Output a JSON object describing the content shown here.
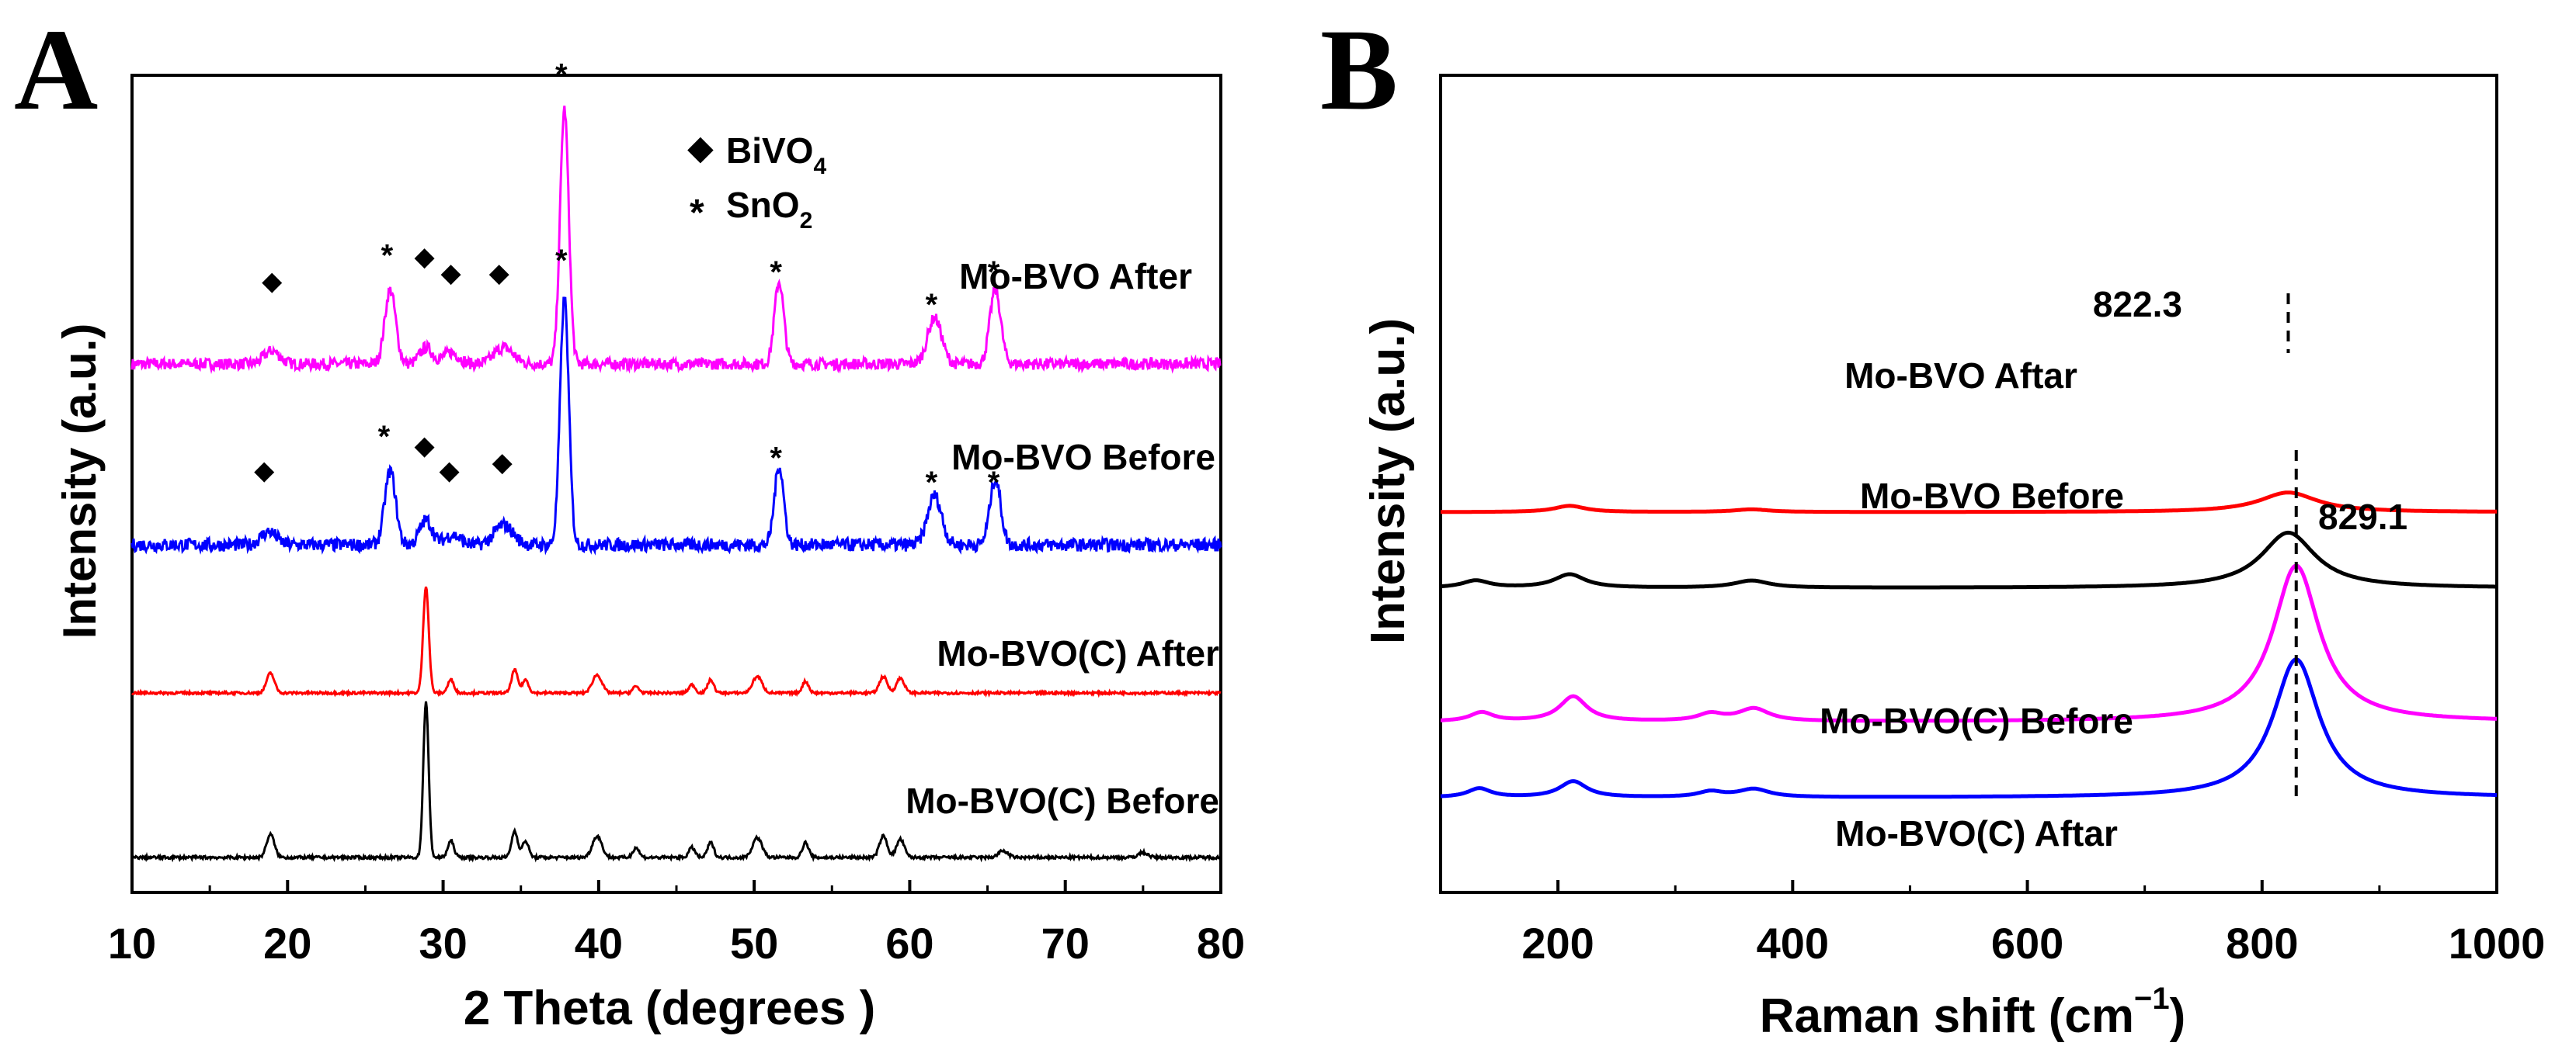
{
  "chart_data": [
    {
      "panel": "A",
      "type": "line",
      "xlabel": "2 Theta (degrees )",
      "ylabel": "Intensity (a.u.)",
      "xlim": [
        10,
        80
      ],
      "xticks": [
        "10",
        "20",
        "30",
        "40",
        "50",
        "60",
        "70",
        "80"
      ],
      "legend": [
        {
          "symbol": "◆",
          "label": "BiVO",
          "sub": "4"
        },
        {
          "symbol": "*",
          "label": "SnO",
          "sub": "2"
        }
      ],
      "series": [
        {
          "name": "Mo-BVO After",
          "color": "#ff00ff",
          "offset": 3.0,
          "noise": 0.07,
          "peaks": [
            [
              26.6,
              0.45,
              0.35
            ],
            [
              37.8,
              1.55,
              0.28
            ],
            [
              51.6,
              0.5,
              0.3
            ],
            [
              61.6,
              0.28,
              0.45
            ],
            [
              65.5,
              0.45,
              0.35
            ],
            [
              19.0,
              0.08,
              0.5
            ],
            [
              28.9,
              0.1,
              0.4
            ],
            [
              30.5,
              0.07,
              0.5
            ],
            [
              33.9,
              0.1,
              0.6
            ]
          ],
          "markers": [
            {
              "symbol": "◆",
              "x": 19.0,
              "y": 3.45
            },
            {
              "symbol": "*",
              "x": 26.4,
              "y": 3.7
            },
            {
              "symbol": "◆",
              "x": 28.8,
              "y": 3.6
            },
            {
              "symbol": "◆",
              "x": 30.5,
              "y": 3.5
            },
            {
              "symbol": "◆",
              "x": 33.6,
              "y": 3.5
            },
            {
              "symbol": "*",
              "x": 37.6,
              "y": 4.8
            },
            {
              "symbol": "*",
              "x": 51.4,
              "y": 3.6
            },
            {
              "symbol": "*",
              "x": 61.4,
              "y": 3.4
            },
            {
              "symbol": "*",
              "x": 65.4,
              "y": 3.6
            }
          ]
        },
        {
          "name": "Mo-BVO Before",
          "color": "#0000ff",
          "offset": 1.9,
          "noise": 0.08,
          "peaks": [
            [
              26.6,
              0.45,
              0.35
            ],
            [
              37.8,
              1.5,
              0.28
            ],
            [
              51.6,
              0.48,
              0.3
            ],
            [
              61.6,
              0.3,
              0.45
            ],
            [
              65.5,
              0.4,
              0.35
            ],
            [
              18.8,
              0.08,
              0.5
            ],
            [
              28.9,
              0.15,
              0.4
            ],
            [
              30.6,
              0.06,
              0.5
            ],
            [
              33.9,
              0.12,
              0.6
            ]
          ],
          "markers": [
            {
              "symbol": "◆",
              "x": 18.5,
              "y": 2.3
            },
            {
              "symbol": "*",
              "x": 26.2,
              "y": 2.6
            },
            {
              "symbol": "◆",
              "x": 28.8,
              "y": 2.45
            },
            {
              "symbol": "◆",
              "x": 30.4,
              "y": 2.3
            },
            {
              "symbol": "◆",
              "x": 33.8,
              "y": 2.35
            },
            {
              "symbol": "*",
              "x": 37.6,
              "y": 3.67
            },
            {
              "symbol": "*",
              "x": 51.4,
              "y": 2.47
            },
            {
              "symbol": "*",
              "x": 61.4,
              "y": 2.32
            },
            {
              "symbol": "*",
              "x": 65.4,
              "y": 2.32
            }
          ]
        },
        {
          "name": "Mo-BVO(C) After",
          "color": "#ff0000",
          "offset": 1.0,
          "noise": 0.015,
          "peaks": [
            [
              18.9,
              0.12,
              0.25
            ],
            [
              28.9,
              0.65,
              0.18
            ],
            [
              30.5,
              0.08,
              0.2
            ],
            [
              34.6,
              0.14,
              0.2
            ],
            [
              35.3,
              0.08,
              0.2
            ],
            [
              39.9,
              0.11,
              0.3
            ],
            [
              42.4,
              0.04,
              0.2
            ],
            [
              46.0,
              0.05,
              0.2
            ],
            [
              47.2,
              0.08,
              0.2
            ],
            [
              50.2,
              0.1,
              0.3
            ],
            [
              53.3,
              0.07,
              0.2
            ],
            [
              58.3,
              0.1,
              0.25
            ],
            [
              59.4,
              0.09,
              0.25
            ]
          ]
        },
        {
          "name": "Mo-BVO(C) Before",
          "color": "#000000",
          "offset": 0.0,
          "noise": 0.018,
          "peaks": [
            [
              18.9,
              0.14,
              0.25
            ],
            [
              28.9,
              0.95,
              0.17
            ],
            [
              30.5,
              0.1,
              0.2
            ],
            [
              34.6,
              0.16,
              0.2
            ],
            [
              35.3,
              0.1,
              0.2
            ],
            [
              39.9,
              0.13,
              0.3
            ],
            [
              42.4,
              0.06,
              0.2
            ],
            [
              46.0,
              0.06,
              0.2
            ],
            [
              47.2,
              0.09,
              0.2
            ],
            [
              50.2,
              0.12,
              0.3
            ],
            [
              53.3,
              0.09,
              0.2
            ],
            [
              58.3,
              0.13,
              0.25
            ],
            [
              59.4,
              0.11,
              0.25
            ],
            [
              66.0,
              0.04,
              0.3
            ],
            [
              75.0,
              0.03,
              0.3
            ]
          ]
        }
      ]
    },
    {
      "panel": "B",
      "type": "line",
      "xlabel": "Raman shift (cm",
      "xlabel_sup": "−1",
      "xlabel_tail": ")",
      "ylabel": "Intensity (a.u.)",
      "xlim": [
        100,
        1000
      ],
      "xticks": [
        "200",
        "400",
        "600",
        "800",
        "1000"
      ],
      "series": [
        {
          "name": "Mo-BVO Aftar",
          "color": "#ff0000",
          "offset": 3.2,
          "peaks": [
            [
              822.3,
              0.22,
              30
            ],
            [
              210,
              0.07,
              16
            ],
            [
              365,
              0.03,
              18
            ]
          ]
        },
        {
          "name": "Mo-BVO Before",
          "color": "#000000",
          "offset": 2.35,
          "peaks": [
            [
              822.3,
              0.62,
              28
            ],
            [
              210,
              0.15,
              16
            ],
            [
              130,
              0.08,
              14
            ],
            [
              365,
              0.08,
              18
            ]
          ]
        },
        {
          "name": "Mo-BVO(C) Before",
          "color": "#ff00ff",
          "offset": 0.85,
          "peaks": [
            [
              829.1,
              1.75,
              24
            ],
            [
              213,
              0.28,
              14
            ],
            [
              135,
              0.1,
              12
            ],
            [
              330,
              0.08,
              13
            ],
            [
              367,
              0.14,
              16
            ]
          ]
        },
        {
          "name": "Mo-BVO(C) Aftar",
          "color": "#0000ff",
          "offset": 0.0,
          "peaks": [
            [
              829.1,
              1.55,
              24
            ],
            [
              213,
              0.18,
              14
            ],
            [
              133,
              0.1,
              12
            ],
            [
              330,
              0.06,
              13
            ],
            [
              367,
              0.09,
              16
            ]
          ]
        }
      ],
      "annotations": [
        {
          "text": "822.3",
          "x": 822.3
        },
        {
          "text": "829.1",
          "x": 829.1
        }
      ]
    }
  ],
  "panels": {
    "a_letter": "A",
    "b_letter": "B"
  }
}
